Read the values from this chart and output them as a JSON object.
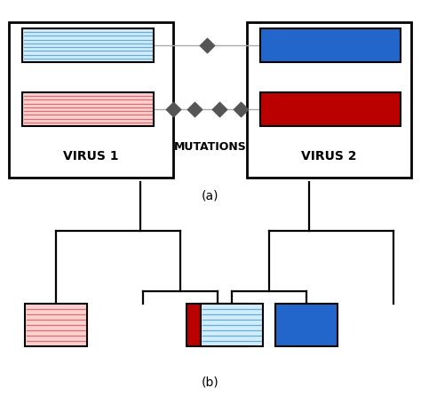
{
  "fig_width": 4.74,
  "fig_height": 4.56,
  "dpi": 100,
  "panel_a": {
    "virus1_label": "VIRUS 1",
    "virus2_label": "VIRUS 2",
    "mutations_label": "MUTATIONS",
    "blue_solid_color": "#2266CC",
    "blue_stripe_bg": "#D0EEFA",
    "blue_stripe_line": "#6AAAD8",
    "red_solid_color": "#BB0000",
    "red_stripe_bg": "#FAD0D0",
    "red_stripe_line": "#D87070",
    "diamond_color": "#555555",
    "conn_line_color": "#AAAAAA"
  },
  "panel_b": {
    "line_color": "#000000",
    "lw": 1.6,
    "red_solid_color": "#BB0000",
    "red_stripe_bg": "#FAD0D0",
    "red_stripe_line": "#D87070",
    "blue_solid_color": "#2266CC",
    "blue_stripe_bg": "#D0EEFA",
    "blue_stripe_line": "#6AAAD8"
  }
}
